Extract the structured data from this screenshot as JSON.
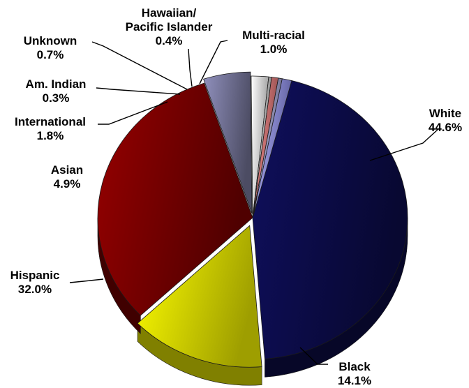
{
  "chart_data": {
    "type": "pie",
    "three_d": true,
    "slices": [
      {
        "label": "White",
        "value": 44.6,
        "value_label": "44.6%",
        "color": "#0d0d4f"
      },
      {
        "label": "Black",
        "value": 14.1,
        "value_label": "14.1%",
        "color": "#ffff00"
      },
      {
        "label": "Hispanic",
        "value": 32.0,
        "value_label": "32.0%",
        "color": "#800000"
      },
      {
        "label": "Asian",
        "value": 4.9,
        "value_label": "4.9%",
        "color": "#7a7aa0"
      },
      {
        "label": "International",
        "value": 1.8,
        "value_label": "1.8%",
        "color": "#ffffff"
      },
      {
        "label": "Am. Indian",
        "value": 0.3,
        "value_label": "0.3%",
        "color": "#d8d8d8"
      },
      {
        "label": "Unknown",
        "value": 0.7,
        "value_label": "0.7%",
        "color": "#f08080"
      },
      {
        "label": "Hawaiian/ Pacific Islander",
        "value": 0.4,
        "value_label": "0.4%",
        "color": "#b0b0e0"
      },
      {
        "label": "Multi-racial",
        "value": 1.0,
        "value_label": "1.0%",
        "color": "#9999ff"
      }
    ]
  }
}
